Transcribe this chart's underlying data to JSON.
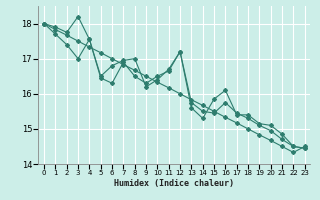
{
  "title": "",
  "xlabel": "Humidex (Indice chaleur)",
  "ylabel": "",
  "bg_color": "#cceee8",
  "grid_color": "#ffffff",
  "line_color": "#2e7d6e",
  "xlim": [
    -0.5,
    23.5
  ],
  "ylim": [
    14,
    18.5
  ],
  "xticks": [
    0,
    1,
    2,
    3,
    4,
    5,
    6,
    7,
    8,
    9,
    10,
    11,
    12,
    13,
    14,
    15,
    16,
    17,
    18,
    19,
    20,
    21,
    22,
    23
  ],
  "yticks": [
    14,
    15,
    16,
    17,
    18
  ],
  "series1_x": [
    0,
    1,
    2,
    3,
    4,
    5,
    6,
    7,
    8,
    9,
    10,
    11,
    12,
    13,
    14,
    15,
    16,
    17,
    18,
    19,
    20,
    21,
    22,
    23
  ],
  "series1_y": [
    18.0,
    17.9,
    17.75,
    18.2,
    17.55,
    16.45,
    16.3,
    16.9,
    16.5,
    16.3,
    16.5,
    16.65,
    17.2,
    15.75,
    15.5,
    15.45,
    15.75,
    15.45,
    15.3,
    15.1,
    14.95,
    14.7,
    14.5,
    14.45
  ],
  "series2_x": [
    0,
    1,
    2,
    3,
    4,
    5,
    6,
    7,
    8,
    9,
    10,
    11,
    12,
    13,
    14,
    15,
    16,
    17,
    18,
    19,
    20,
    21,
    22,
    23
  ],
  "series2_y": [
    18.0,
    17.83,
    17.67,
    17.5,
    17.33,
    17.17,
    17.0,
    16.83,
    16.67,
    16.5,
    16.33,
    16.17,
    16.0,
    15.83,
    15.67,
    15.5,
    15.33,
    15.17,
    15.0,
    14.83,
    14.67,
    14.5,
    14.33,
    14.5
  ],
  "series3_x": [
    0,
    1,
    2,
    3,
    4,
    5,
    6,
    7,
    8,
    9,
    10,
    11,
    12,
    13,
    14,
    15,
    16,
    17,
    18,
    19,
    20,
    21,
    22,
    23
  ],
  "series3_y": [
    18.0,
    17.7,
    17.4,
    17.0,
    17.55,
    16.5,
    16.8,
    16.95,
    17.0,
    16.2,
    16.4,
    16.7,
    17.2,
    15.6,
    15.3,
    15.85,
    16.1,
    15.4,
    15.4,
    15.15,
    15.1,
    14.85,
    14.5,
    14.45
  ]
}
